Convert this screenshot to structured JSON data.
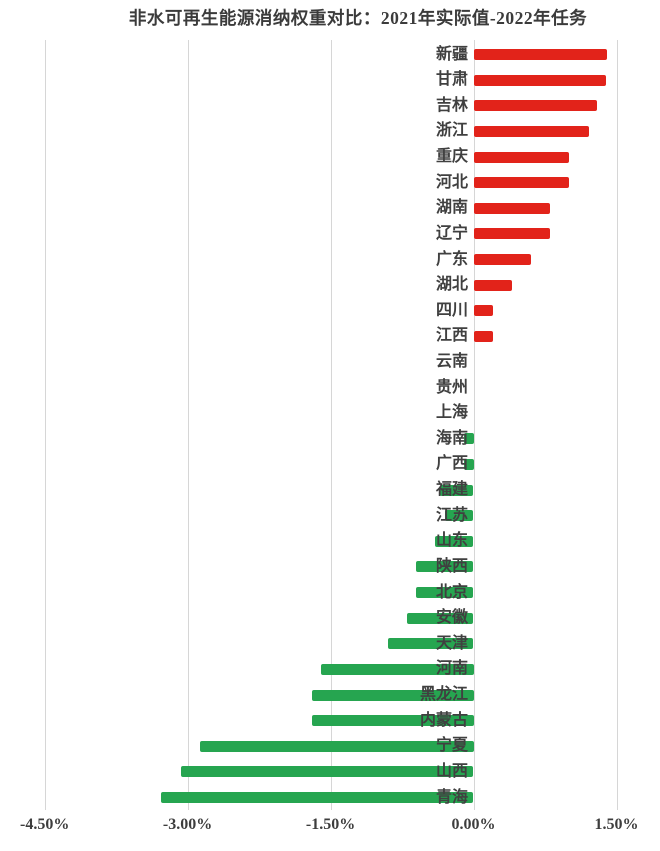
{
  "page": {
    "background_color": "#ffffff"
  },
  "chart_data": {
    "type": "bar",
    "orientation": "horizontal",
    "title": "非水可再生能源消纳权重对比：2021年实际值-2022年任务",
    "xlabel": "",
    "ylabel": "",
    "unit": "%",
    "xlim": [
      -4.5,
      1.5
    ],
    "x_tick_values": [
      -4.5,
      -3.0,
      -1.5,
      0.0,
      1.5
    ],
    "x_tick_labels": [
      "-4.50%",
      "-3.00%",
      "-1.50%",
      "0.00%",
      "1.50%"
    ],
    "grid": "vertical-gridlines-on",
    "legend": "none",
    "positive_color": "#e2231a",
    "negative_color": "#26a550",
    "categories": [
      "新疆",
      "甘肃",
      "吉林",
      "浙江",
      "重庆",
      "河北",
      "湖南",
      "辽宁",
      "广东",
      "湖北",
      "四川",
      "江西",
      "云南",
      "贵州",
      "上海",
      "海南",
      "广西",
      "福建",
      "江苏",
      "山东",
      "陕西",
      "北京",
      "安徽",
      "天津",
      "河南",
      "黑龙江",
      "内蒙古",
      "宁夏",
      "山西",
      "青海"
    ],
    "values": [
      1.4,
      1.39,
      1.3,
      1.21,
      1.0,
      1.0,
      0.8,
      0.8,
      0.6,
      0.4,
      0.2,
      0.2,
      0.0,
      0.0,
      0.0,
      -0.1,
      -0.1,
      -0.35,
      -0.3,
      -0.4,
      -0.6,
      -0.6,
      -0.7,
      -0.9,
      -1.6,
      -1.7,
      -1.7,
      -2.87,
      -3.07,
      -3.28
    ]
  },
  "colors": {
    "title_text": "#3b3b3b",
    "label_text": "#404040",
    "tick_text": "#3d3d3d",
    "gridline": "#d6d6d6"
  }
}
